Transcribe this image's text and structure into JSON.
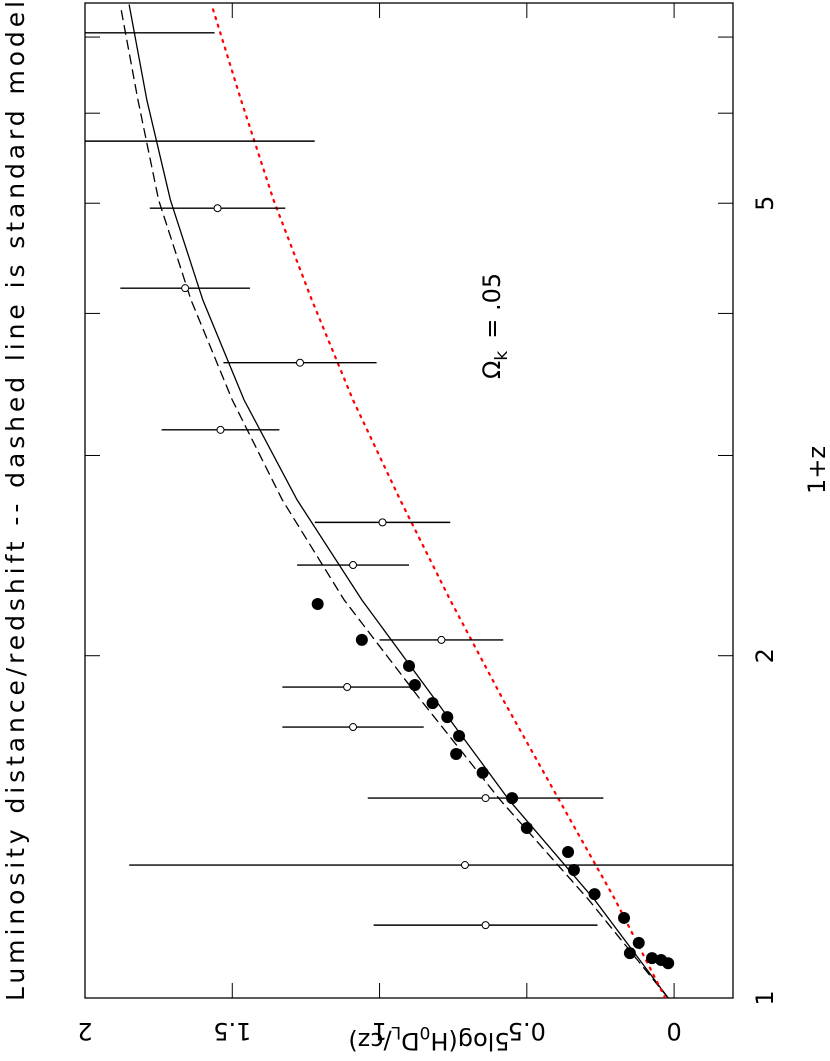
{
  "chart_data": {
    "type": "scatter",
    "title": "Luminosity distance/redshift -- dashed line is standard model",
    "x_label": "1+z",
    "y_label": {
      "parts": [
        "5log(H",
        "0",
        "D",
        "L",
        "/cz)"
      ],
      "subscripts": [
        1,
        3
      ]
    },
    "annotation": {
      "symbol": "Ω",
      "subscript": "k",
      "text": "=   .05"
    },
    "log_x": true,
    "xlim": [
      1,
      7.5
    ],
    "xticks": [
      1,
      2,
      5
    ],
    "x_minor_ticks": [
      3,
      4,
      6,
      7
    ],
    "ylim": [
      -0.2,
      2
    ],
    "yticks": [
      0,
      0.5,
      1,
      1.5,
      2
    ],
    "series": [
      {
        "marker": "filled",
        "color": "#000000",
        "x": [
          1.073,
          1.08,
          1.084,
          1.118,
          1.095,
          1.176,
          1.234,
          1.296,
          1.344,
          1.411,
          1.499,
          1.578,
          1.639,
          1.7,
          1.766,
          1.817,
          1.885,
          1.959,
          2.065,
          2.221
        ],
        "values": [
          0.02,
          0.044,
          0.075,
          0.12,
          0.15,
          0.17,
          0.27,
          0.34,
          0.36,
          0.5,
          0.55,
          0.65,
          0.74,
          0.73,
          0.77,
          0.82,
          0.88,
          0.9,
          1.06,
          1.21
        ]
      },
      {
        "marker": "open",
        "color": "#000000",
        "x": [
          1.159,
          1.309,
          1.499,
          1.731,
          1.877,
          2.065,
          2.403,
          2.62,
          3.16,
          3.62,
          4.21,
          4.95
        ],
        "values": [
          0.64,
          0.71,
          0.64,
          1.09,
          1.11,
          0.79,
          1.09,
          0.99,
          1.54,
          1.27,
          1.66,
          1.55
        ],
        "errors": [
          0.38,
          1.14,
          0.4,
          0.24,
          0.22,
          0.21,
          0.19,
          0.23,
          0.2,
          0.26,
          0.22,
          0.23
        ]
      },
      {
        "marker": "none",
        "color": "#000000",
        "x": [
          5.67,
          7.06
        ],
        "values": [
          1.61,
          1.78
        ],
        "errors": [
          0.39,
          0.22
        ]
      }
    ],
    "curves": [
      {
        "style": "solid",
        "color": "#000000",
        "x": [
          1,
          1.22,
          1.493,
          1.828,
          2.239,
          2.742,
          3.357,
          4.111,
          5.034,
          6.16,
          7.47
        ],
        "values": [
          0.02,
          0.27,
          0.56,
          0.81,
          1.06,
          1.28,
          1.46,
          1.6,
          1.71,
          1.79,
          1.85
        ]
      },
      {
        "style": "dashed",
        "color": "#000000",
        "x": [
          1,
          1.22,
          1.493,
          1.828,
          2.239,
          2.742,
          3.357,
          4.111,
          5.034,
          6.16,
          7.47
        ],
        "values": [
          0.02,
          0.29,
          0.59,
          0.86,
          1.12,
          1.33,
          1.5,
          1.64,
          1.75,
          1.82,
          1.88
        ]
      },
      {
        "style": "dotted",
        "color": "#ff0000",
        "x": [
          1,
          1.22,
          1.493,
          1.828,
          2.239,
          2.742,
          3.357,
          4.111,
          5.034,
          6.16,
          7.47
        ],
        "values": [
          0.03,
          0.2,
          0.39,
          0.58,
          0.76,
          0.93,
          1.09,
          1.23,
          1.36,
          1.47,
          1.57
        ]
      }
    ]
  }
}
